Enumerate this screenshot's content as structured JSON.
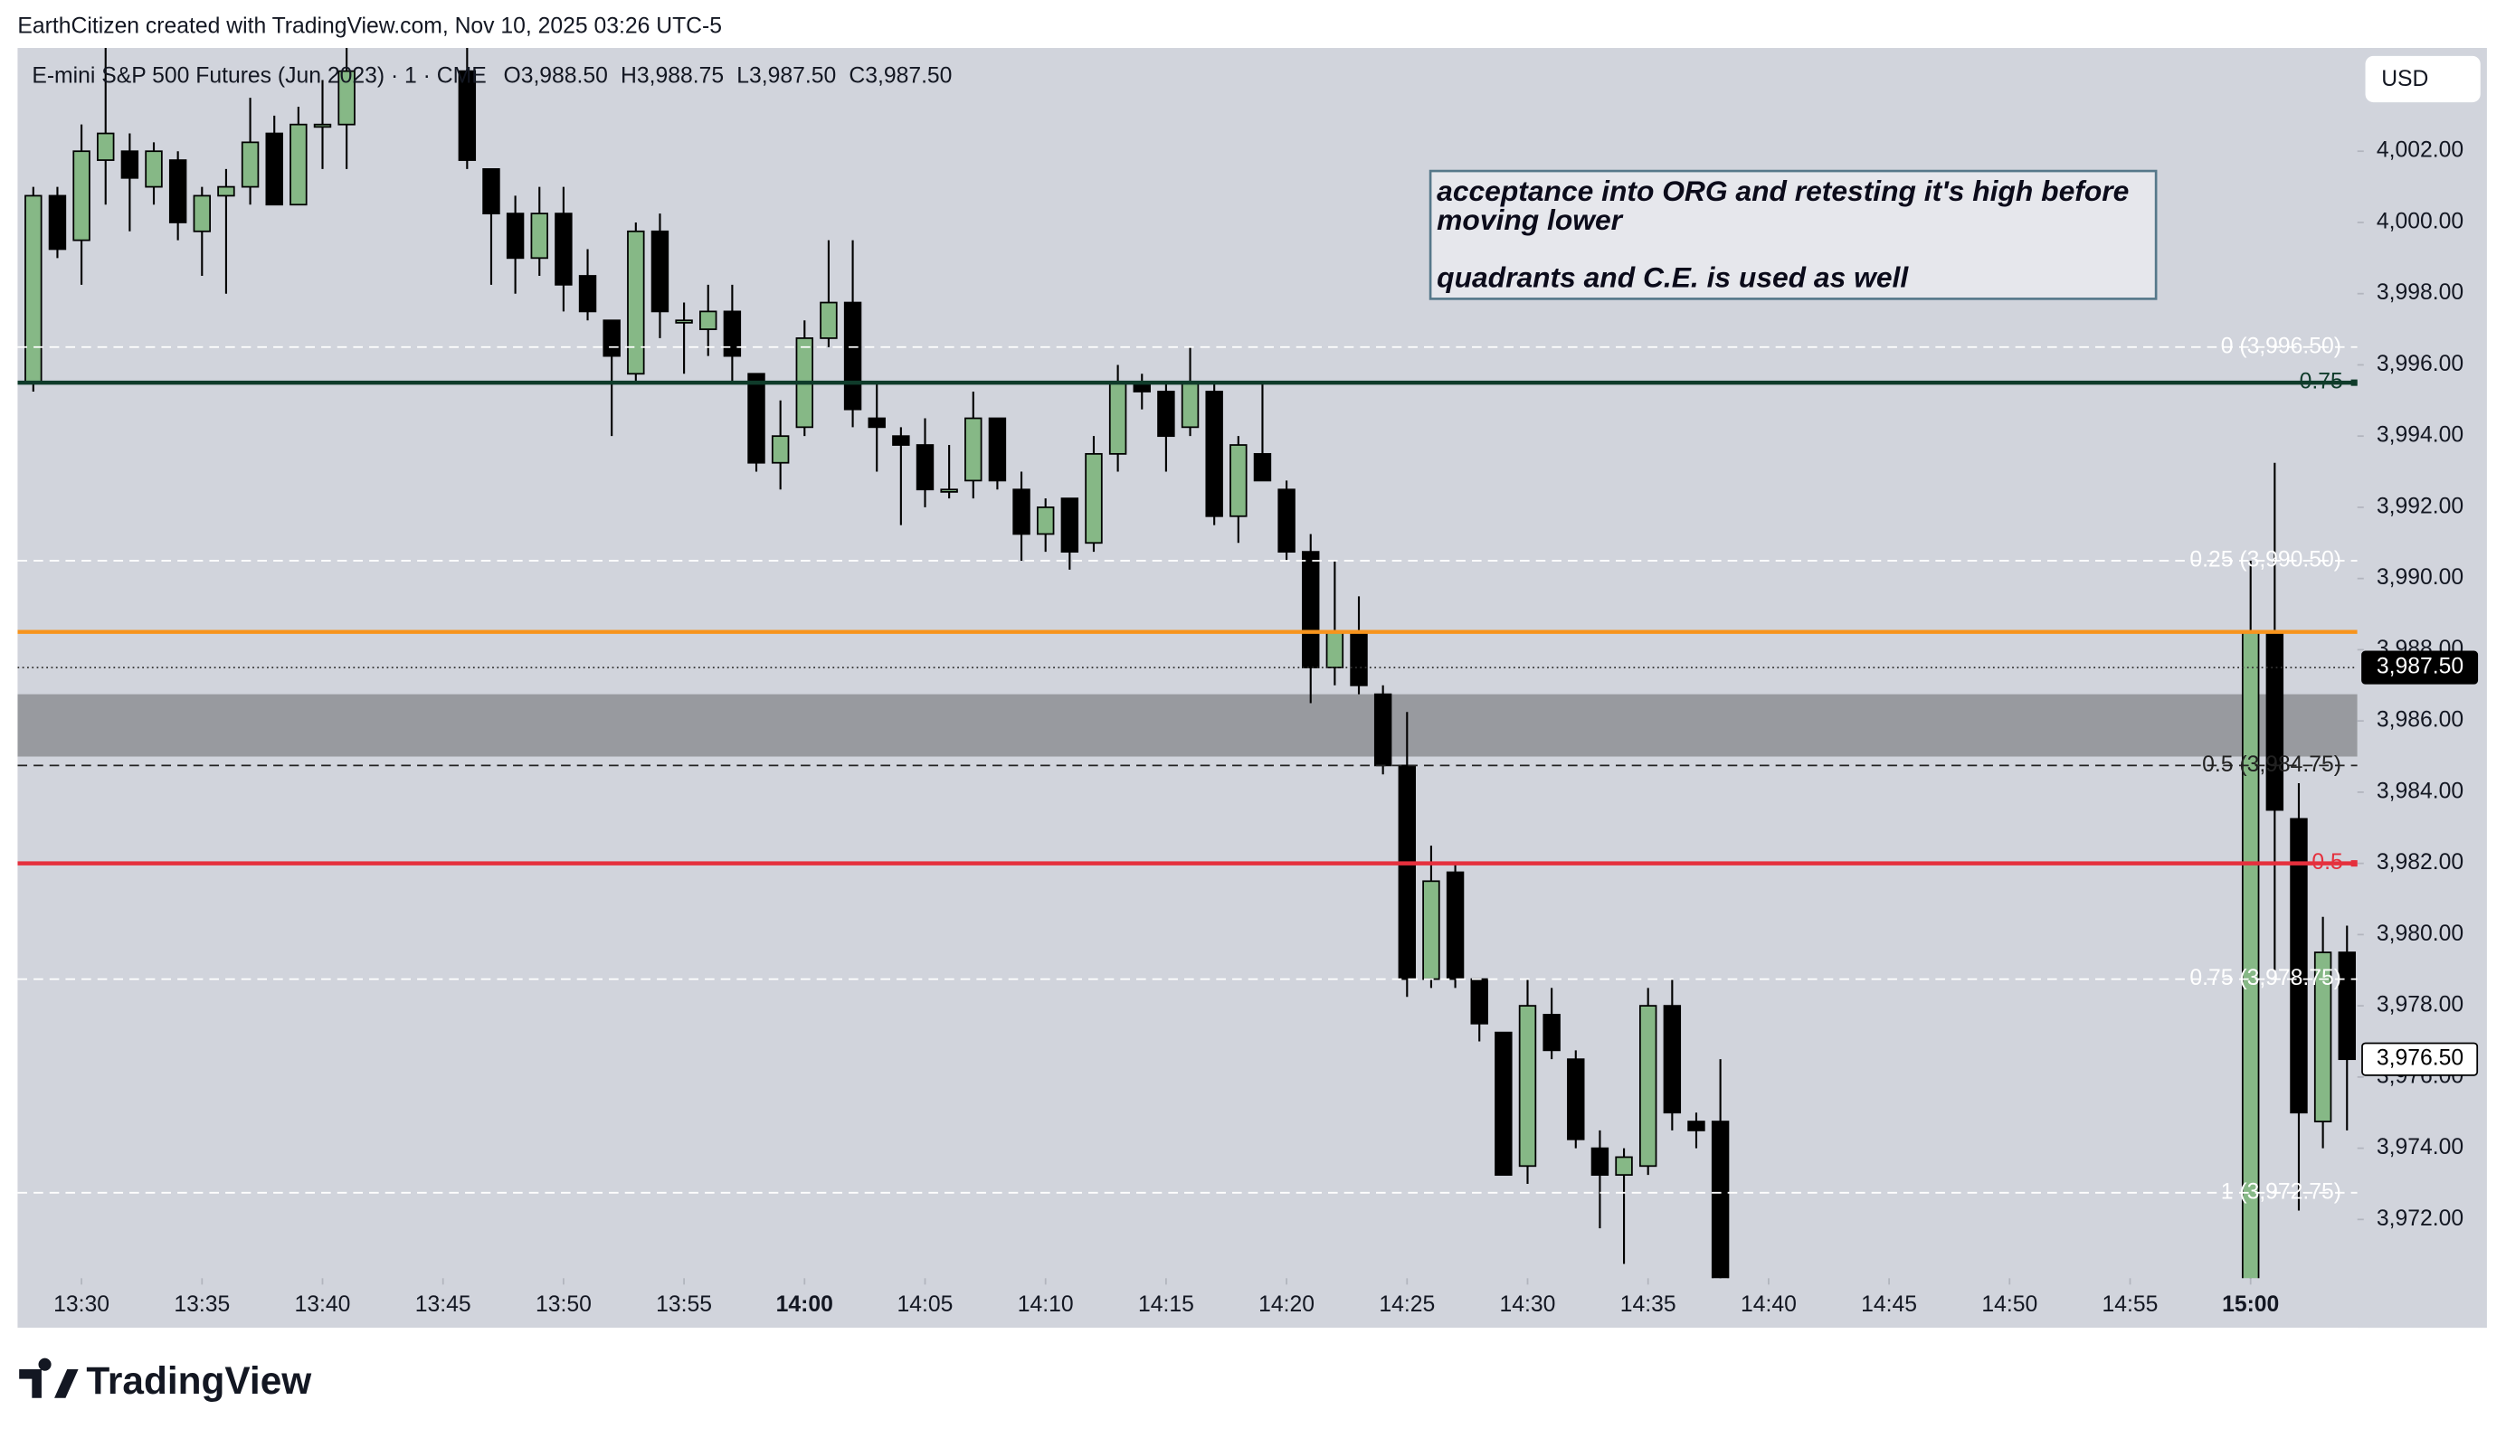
{
  "header": "EarthCitizen created with TradingView.com, Nov 10, 2025 03:26 UTC-5",
  "brand": "TradingView",
  "currency": "USD",
  "chart_data": {
    "type": "candlestick",
    "symbol": "E-mini S&P 500 Futures (Jun 2023) · 1 · CME",
    "ohlc_legend": [
      "O3,988.50",
      "H3,988.75",
      "L3,987.50",
      "C3,987.50"
    ],
    "annotation": [
      "acceptance into ORG and retesting it's high before",
      "moving lower",
      "quadrants and C.E. is used as well"
    ],
    "up_color": "#86b886",
    "down_color": "#000000",
    "x": [
      "13:28",
      "13:29",
      "13:30",
      "13:31",
      "13:32",
      "13:33",
      "13:34",
      "13:35",
      "13:36",
      "13:37",
      "13:38",
      "13:39",
      "13:40",
      "13:41",
      "13:46",
      "13:47",
      "13:48",
      "13:49",
      "13:50",
      "13:51",
      "13:52",
      "13:53",
      "13:54",
      "13:55",
      "13:56",
      "13:57",
      "13:58",
      "13:59",
      "14:00",
      "14:01",
      "14:02",
      "14:03",
      "14:04",
      "14:05",
      "14:06",
      "14:07",
      "14:08",
      "14:09",
      "14:10",
      "14:11",
      "14:12",
      "14:13",
      "14:14",
      "14:15",
      "14:16",
      "14:17",
      "14:18",
      "14:19",
      "14:20",
      "14:21",
      "14:22",
      "14:23",
      "14:24",
      "14:25",
      "14:26",
      "14:27",
      "14:28",
      "14:29",
      "14:30",
      "14:31",
      "14:32",
      "14:33",
      "14:34",
      "14:35",
      "14:36",
      "14:37",
      "14:38",
      "15:00",
      "15:01",
      "15:02",
      "15:03",
      "15:04"
    ],
    "open": [
      3995.5,
      4000.75,
      3999.5,
      4001.75,
      4002,
      4001,
      4001.75,
      3999.75,
      4000.75,
      4001,
      4002.5,
      4000.5,
      4002.75,
      4002.75,
      4004.25,
      4001.5,
      4000.25,
      3999,
      4000.25,
      3998.5,
      3997.25,
      3995.75,
      3999.75,
      3997.25,
      3997,
      3997.5,
      3995.75,
      3993.25,
      3994.25,
      3996.75,
      3997.75,
      3994.5,
      3994,
      3993.75,
      3992.5,
      3992.75,
      3994.5,
      3992.5,
      3991.25,
      3992.25,
      3991,
      3993.5,
      3995.5,
      3995.25,
      3994.25,
      3995.25,
      3991.75,
      3993.5,
      3992.5,
      3990.75,
      3987.5,
      3988.5,
      3986.75,
      3984.75,
      3978.75,
      3981.75,
      3978.75,
      3977.25,
      3973.5,
      3977.75,
      3976.5,
      3974,
      3973.25,
      3973.5,
      3978,
      3974.75,
      3974.75,
      3969.75,
      3988.5,
      3983.25,
      3974.75,
      3979.5
    ],
    "high": [
      4001,
      4001,
      4002.75,
      4005,
      4002.5,
      4002.25,
      4002,
      4001,
      4001.5,
      4003.5,
      4003,
      4003.25,
      4004,
      4005,
      4006,
      4001.5,
      4000.75,
      4001,
      4001,
      3999.25,
      3997.25,
      4000,
      4000.25,
      3997.75,
      3998.25,
      3998.25,
      3995.75,
      3995,
      3997.25,
      3999.5,
      3999.5,
      3995.5,
      3994.25,
      3994.5,
      3993.75,
      3995.25,
      3994.5,
      3993,
      3992.25,
      3992.25,
      3994,
      3996,
      3995.75,
      3995.5,
      3996.5,
      3995.5,
      3994,
      3995.5,
      3992.75,
      3991.25,
      3990.5,
      3989.5,
      3987,
      3986.25,
      3982.5,
      3982,
      3978.75,
      3977.25,
      3978.75,
      3978.5,
      3976.75,
      3974.5,
      3974,
      3978.5,
      3978.75,
      3975,
      3976.5,
      3990.5,
      3993.25,
      3984.25,
      3980.5,
      3980.25
    ],
    "low": [
      3995.25,
      3999,
      3998.25,
      4000.5,
      3999.75,
      4000.5,
      3999.5,
      3998.5,
      3998,
      4000.5,
      4000.5,
      4000.5,
      4001.5,
      4001.5,
      4001.5,
      3998.25,
      3998,
      3998.5,
      3997.5,
      3997.25,
      3994,
      3995.5,
      3996.75,
      3995.75,
      3996.25,
      3995.5,
      3993,
      3992.5,
      3994,
      3996.5,
      3994.25,
      3993,
      3991.5,
      3992,
      3992.25,
      3992.25,
      3992.5,
      3990.5,
      3990.75,
      3990.25,
      3990.75,
      3993,
      3994.75,
      3993,
      3994,
      3991.5,
      3991,
      3992.75,
      3990.5,
      3986.5,
      3987,
      3986.75,
      3984.5,
      3978.25,
      3978.5,
      3978.5,
      3977,
      3973.25,
      3973,
      3976.5,
      3974,
      3971.75,
      3970.75,
      3973.25,
      3974.5,
      3974,
      3969.5,
      3969.5,
      3979,
      3972.25,
      3974,
      3974.5
    ],
    "close": [
      4000.75,
      3999.25,
      4002,
      4002.5,
      4001.25,
      4002,
      4000,
      4000.75,
      4001,
      4002.25,
      4000.5,
      4002.75,
      4002.75,
      4004.25,
      4001.75,
      4000.25,
      3999,
      4000.25,
      3998.25,
      3997.5,
      3996.25,
      3999.75,
      3997.5,
      3997.25,
      3997.5,
      3996.25,
      3993.25,
      3994,
      3996.75,
      3997.75,
      3994.75,
      3994.25,
      3993.75,
      3992.5,
      3992.5,
      3994.5,
      3992.75,
      3991.25,
      3992,
      3990.75,
      3993.5,
      3995.5,
      3995.25,
      3994,
      3995.5,
      3991.75,
      3993.75,
      3992.75,
      3990.75,
      3987.5,
      3988.5,
      3987,
      3984.75,
      3978.75,
      3981.5,
      3978.75,
      3977.5,
      3973.25,
      3978,
      3976.75,
      3974.25,
      3973.25,
      3973.75,
      3978,
      3975,
      3974.5,
      3970.25,
      3988.5,
      3983.5,
      3975,
      3979.5,
      3976.5
    ],
    "xticks": [
      "13:30",
      "13:35",
      "13:40",
      "13:45",
      "13:50",
      "13:55",
      "14:00",
      "14:05",
      "14:10",
      "14:15",
      "14:20",
      "14:25",
      "14:30",
      "14:35",
      "14:40",
      "14:45",
      "14:50",
      "14:55",
      "15:00"
    ],
    "ylim": [
      3970.35,
      4004.9
    ],
    "yticks": [
      {
        "value": 4002,
        "label": "4,002.00"
      },
      {
        "value": 4000,
        "label": "4,000.00"
      },
      {
        "value": 3998,
        "label": "3,998.00"
      },
      {
        "value": 3996,
        "label": "3,996.00"
      },
      {
        "value": 3994,
        "label": "3,994.00"
      },
      {
        "value": 3992,
        "label": "3,992.00"
      },
      {
        "value": 3990,
        "label": "3,990.00"
      },
      {
        "value": 3988,
        "label": "3,988.00"
      },
      {
        "value": 3986,
        "label": "3,986.00"
      },
      {
        "value": 3984,
        "label": "3,984.00"
      },
      {
        "value": 3982,
        "label": "3,982.00"
      },
      {
        "value": 3980,
        "label": "3,980.00"
      },
      {
        "value": 3978,
        "label": "3,978.00"
      },
      {
        "value": 3976,
        "label": "3,976.00"
      },
      {
        "value": 3974,
        "label": "3,974.00"
      },
      {
        "value": 3972,
        "label": "3,972.00"
      }
    ],
    "zone": {
      "from": 3985,
      "to": 3986.75,
      "color": "#8e8f94"
    },
    "levels": [
      {
        "label": "0 (3,996.50)",
        "value": 3996.5,
        "color": "#ffffff",
        "style": "dashed"
      },
      {
        "label": "0.75",
        "value": 3995.5,
        "color": "#0f3b2a",
        "style": "solid"
      },
      {
        "label": "0.25 (3,990.50)",
        "value": 3990.5,
        "color": "#ffffff",
        "style": "dashed"
      },
      {
        "label": "0.5 (3,984.75)",
        "value": 3984.75,
        "color": "#222222",
        "style": "dashed"
      },
      {
        "label": "0.5",
        "value": 3982,
        "color": "#e5303d",
        "style": "solid"
      },
      {
        "label": "0.75 (3,978.75)",
        "value": 3978.75,
        "color": "#ffffff",
        "style": "dashed"
      },
      {
        "label": "1 (3,972.75)",
        "value": 3972.75,
        "color": "#ffffff",
        "style": "dashed"
      }
    ],
    "orange_line": {
      "value": 3988.5,
      "color": "#f7941d"
    },
    "price_labels": [
      {
        "value": 3987.5,
        "label": "3,987.50",
        "style": "dark"
      },
      {
        "value": 3976.5,
        "label": "3,976.50",
        "style": "light"
      }
    ]
  }
}
